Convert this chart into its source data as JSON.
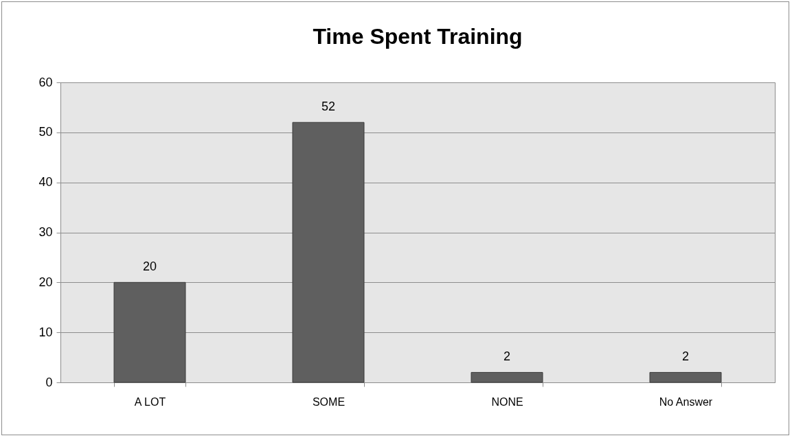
{
  "chart_data": {
    "type": "bar",
    "title": "Time Spent Training",
    "categories": [
      "A LOT",
      "SOME",
      "NONE",
      "No Answer"
    ],
    "values": [
      20,
      52,
      2,
      2
    ],
    "color": "#5f5f5f",
    "ylim": [
      0,
      60
    ],
    "yticks": [
      0,
      10,
      20,
      30,
      40,
      50,
      60
    ],
    "grid": "y",
    "data_labels": true
  }
}
